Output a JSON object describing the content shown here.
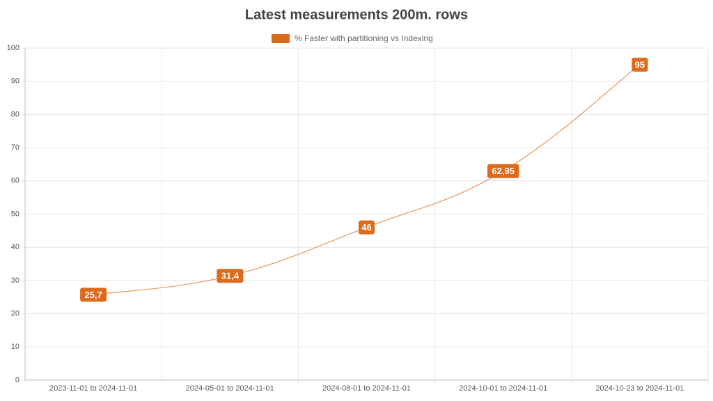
{
  "chart_data": {
    "type": "line",
    "title": "Latest measurements 200m. rows",
    "categories": [
      "2023-11-01 to 2024-11-01",
      "2024-05-01 to 2024-11-01",
      "2024-08-01 to 2024-11-01",
      "2024-10-01 to 2024-11-01",
      "2024-10-23 to 2024-11-01"
    ],
    "series": [
      {
        "name": "% Faster with partitioning vs Indexing",
        "color": "#e06a1b",
        "values": [
          25.7,
          31.4,
          46,
          62.95,
          95
        ],
        "value_labels": [
          "25,7",
          "31,4",
          "46",
          "62,95",
          "95"
        ]
      }
    ],
    "ylim": [
      0,
      100
    ],
    "yticks": [
      0,
      10,
      20,
      30,
      40,
      50,
      60,
      70,
      80,
      90,
      100
    ],
    "grid": true,
    "legend": "top"
  }
}
